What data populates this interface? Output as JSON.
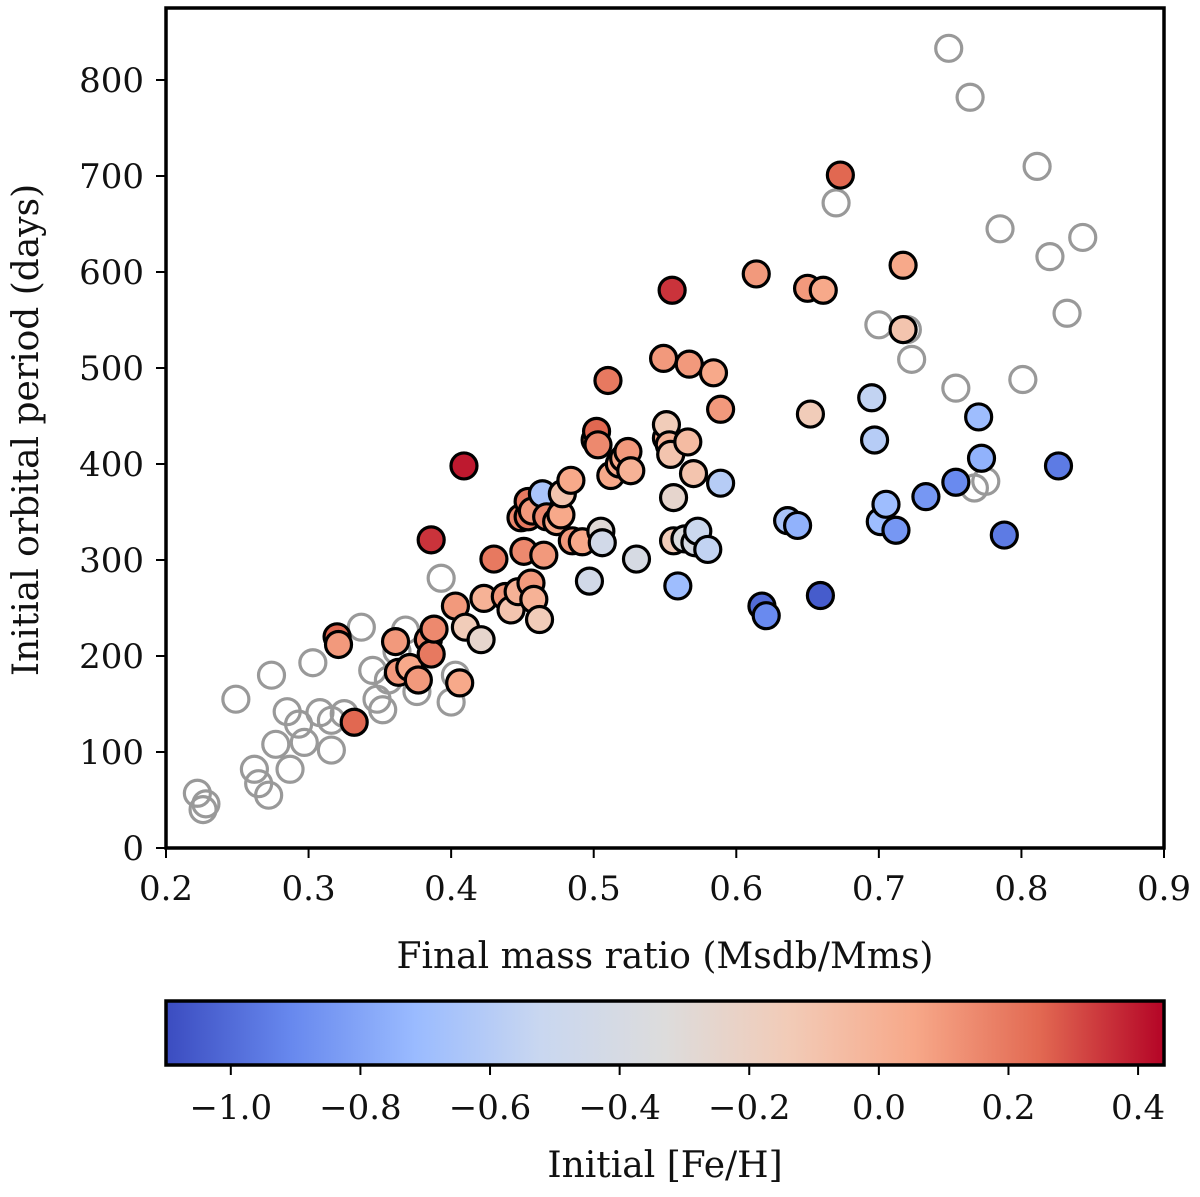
{
  "chart_data": {
    "type": "scatter",
    "title": "",
    "xlabel": "Final mass ratio (Msdb/Mms)",
    "ylabel": "Initial orbital period (days)",
    "xlim": [
      0.2,
      0.9
    ],
    "ylim": [
      0,
      875
    ],
    "xticks": [
      "0.2",
      "0.3",
      "0.4",
      "0.5",
      "0.6",
      "0.7",
      "0.8",
      "0.9"
    ],
    "yticks": [
      "0",
      "100",
      "200",
      "300",
      "400",
      "500",
      "600",
      "700",
      "800"
    ],
    "grid": false,
    "colorbar": {
      "label": "Initial [Fe/H]",
      "range": [
        -1.1,
        0.44
      ],
      "ticks": [
        "−1.0",
        "−0.8",
        "−0.6",
        "−0.4",
        "−0.2",
        "0.0",
        "0.2",
        "0.4"
      ],
      "colormap": "coolwarm",
      "stops": [
        "#3b4cc0",
        "#6788ee",
        "#9abbff",
        "#c9d7f0",
        "#dddcdc",
        "#f2cbb7",
        "#f7a889",
        "#e26952",
        "#b40426"
      ]
    },
    "series": [
      {
        "name": "no [Fe/H] (open markers)",
        "marker": "open circle",
        "color": "#999999",
        "points": [
          [
            0.222,
            57
          ],
          [
            0.228,
            46
          ],
          [
            0.226,
            40
          ],
          [
            0.249,
            155
          ],
          [
            0.262,
            82
          ],
          [
            0.265,
            67
          ],
          [
            0.272,
            55
          ],
          [
            0.274,
            180
          ],
          [
            0.285,
            142
          ],
          [
            0.287,
            82
          ],
          [
            0.293,
            129
          ],
          [
            0.277,
            108
          ],
          [
            0.297,
            110
          ],
          [
            0.303,
            193
          ],
          [
            0.308,
            141
          ],
          [
            0.316,
            133
          ],
          [
            0.316,
            102
          ],
          [
            0.325,
            140
          ],
          [
            0.337,
            230
          ],
          [
            0.345,
            185
          ],
          [
            0.348,
            155
          ],
          [
            0.352,
            144
          ],
          [
            0.356,
            175
          ],
          [
            0.362,
            205
          ],
          [
            0.368,
            227
          ],
          [
            0.372,
            185
          ],
          [
            0.376,
            163
          ],
          [
            0.393,
            281
          ],
          [
            0.4,
            152
          ],
          [
            0.403,
            180
          ],
          [
            0.67,
            672
          ],
          [
            0.7,
            545
          ],
          [
            0.72,
            540
          ],
          [
            0.723,
            509
          ],
          [
            0.749,
            833
          ],
          [
            0.754,
            479
          ],
          [
            0.764,
            782
          ],
          [
            0.767,
            375
          ],
          [
            0.775,
            382
          ],
          [
            0.785,
            645
          ],
          [
            0.801,
            488
          ],
          [
            0.811,
            710
          ],
          [
            0.82,
            616
          ],
          [
            0.832,
            557
          ],
          [
            0.843,
            636
          ]
        ]
      },
      {
        "name": "colored by Initial [Fe/H]",
        "marker": "filled circle",
        "points": [
          [
            0.332,
            131,
            0.25
          ],
          [
            0.32,
            220,
            0.25
          ],
          [
            0.321,
            212,
            0.1
          ],
          [
            0.361,
            215,
            0.1
          ],
          [
            0.363,
            183,
            0.1
          ],
          [
            0.371,
            188,
            0.05
          ],
          [
            0.377,
            175,
            0.1
          ],
          [
            0.384,
            217,
            0.15
          ],
          [
            0.386,
            202,
            0.2
          ],
          [
            0.388,
            228,
            0.15
          ],
          [
            0.386,
            321,
            0.35
          ],
          [
            0.403,
            252,
            0.1
          ],
          [
            0.406,
            172,
            0.05
          ],
          [
            0.409,
            398,
            0.4
          ],
          [
            0.41,
            230,
            -0.15
          ],
          [
            0.421,
            217,
            -0.25
          ],
          [
            0.423,
            260,
            0.0
          ],
          [
            0.43,
            301,
            0.2
          ],
          [
            0.438,
            262,
            0.1
          ],
          [
            0.442,
            248,
            -0.1
          ],
          [
            0.447,
            267,
            0.0
          ],
          [
            0.449,
            344,
            0.15
          ],
          [
            0.451,
            309,
            0.15
          ],
          [
            0.454,
            345,
            0.2
          ],
          [
            0.454,
            361,
            0.2
          ],
          [
            0.457,
            351,
            0.1
          ],
          [
            0.456,
            276,
            0.1
          ],
          [
            0.458,
            259,
            0.0
          ],
          [
            0.462,
            238,
            -0.15
          ],
          [
            0.464,
            369,
            -0.65
          ],
          [
            0.465,
            305,
            0.1
          ],
          [
            0.467,
            345,
            0.15
          ],
          [
            0.474,
            340,
            0.05
          ],
          [
            0.477,
            347,
            0.05
          ],
          [
            0.478,
            369,
            -0.1
          ],
          [
            0.484,
            383,
            0.05
          ],
          [
            0.485,
            320,
            0.1
          ],
          [
            0.492,
            319,
            0.05
          ],
          [
            0.497,
            278,
            -0.45
          ],
          [
            0.501,
            425,
            0.15
          ],
          [
            0.502,
            434,
            0.25
          ],
          [
            0.503,
            420,
            0.15
          ],
          [
            0.505,
            330,
            -0.3
          ],
          [
            0.506,
            318,
            -0.45
          ],
          [
            0.51,
            487,
            0.2
          ],
          [
            0.512,
            388,
            0.05
          ],
          [
            0.518,
            400,
            0.05
          ],
          [
            0.521,
            406,
            0.05
          ],
          [
            0.524,
            413,
            0.1
          ],
          [
            0.526,
            393,
            0.0
          ],
          [
            0.53,
            301,
            -0.4
          ],
          [
            0.549,
            510,
            0.1
          ],
          [
            0.551,
            427,
            0.05
          ],
          [
            0.551,
            441,
            -0.15
          ],
          [
            0.553,
            420,
            0.0
          ],
          [
            0.554,
            410,
            -0.1
          ],
          [
            0.555,
            581,
            0.35
          ],
          [
            0.556,
            365,
            -0.25
          ],
          [
            0.556,
            320,
            -0.15
          ],
          [
            0.559,
            273,
            -0.7
          ],
          [
            0.564,
            322,
            -0.35
          ],
          [
            0.566,
            423,
            -0.05
          ],
          [
            0.567,
            504,
            0.1
          ],
          [
            0.57,
            390,
            -0.1
          ],
          [
            0.571,
            318,
            -0.4
          ],
          [
            0.573,
            330,
            -0.5
          ],
          [
            0.58,
            311,
            -0.55
          ],
          [
            0.584,
            495,
            0.05
          ],
          [
            0.589,
            457,
            0.1
          ],
          [
            0.589,
            380,
            -0.6
          ],
          [
            0.614,
            598,
            0.1
          ],
          [
            0.618,
            252,
            -1.0
          ],
          [
            0.621,
            242,
            -0.9
          ],
          [
            0.636,
            341,
            -0.65
          ],
          [
            0.643,
            336,
            -0.75
          ],
          [
            0.65,
            583,
            0.1
          ],
          [
            0.652,
            452,
            -0.15
          ],
          [
            0.659,
            263,
            -1.05
          ],
          [
            0.661,
            581,
            0.05
          ],
          [
            0.673,
            701,
            0.25
          ],
          [
            0.695,
            469,
            -0.55
          ],
          [
            0.697,
            425,
            -0.6
          ],
          [
            0.701,
            340,
            -0.7
          ],
          [
            0.705,
            358,
            -0.7
          ],
          [
            0.712,
            331,
            -0.85
          ],
          [
            0.717,
            607,
            0.05
          ],
          [
            0.717,
            540,
            -0.1
          ],
          [
            0.733,
            366,
            -0.85
          ],
          [
            0.754,
            381,
            -0.9
          ],
          [
            0.77,
            449,
            -0.7
          ],
          [
            0.772,
            406,
            -0.75
          ],
          [
            0.788,
            326,
            -0.95
          ],
          [
            0.826,
            398,
            -0.95
          ]
        ]
      }
    ]
  }
}
